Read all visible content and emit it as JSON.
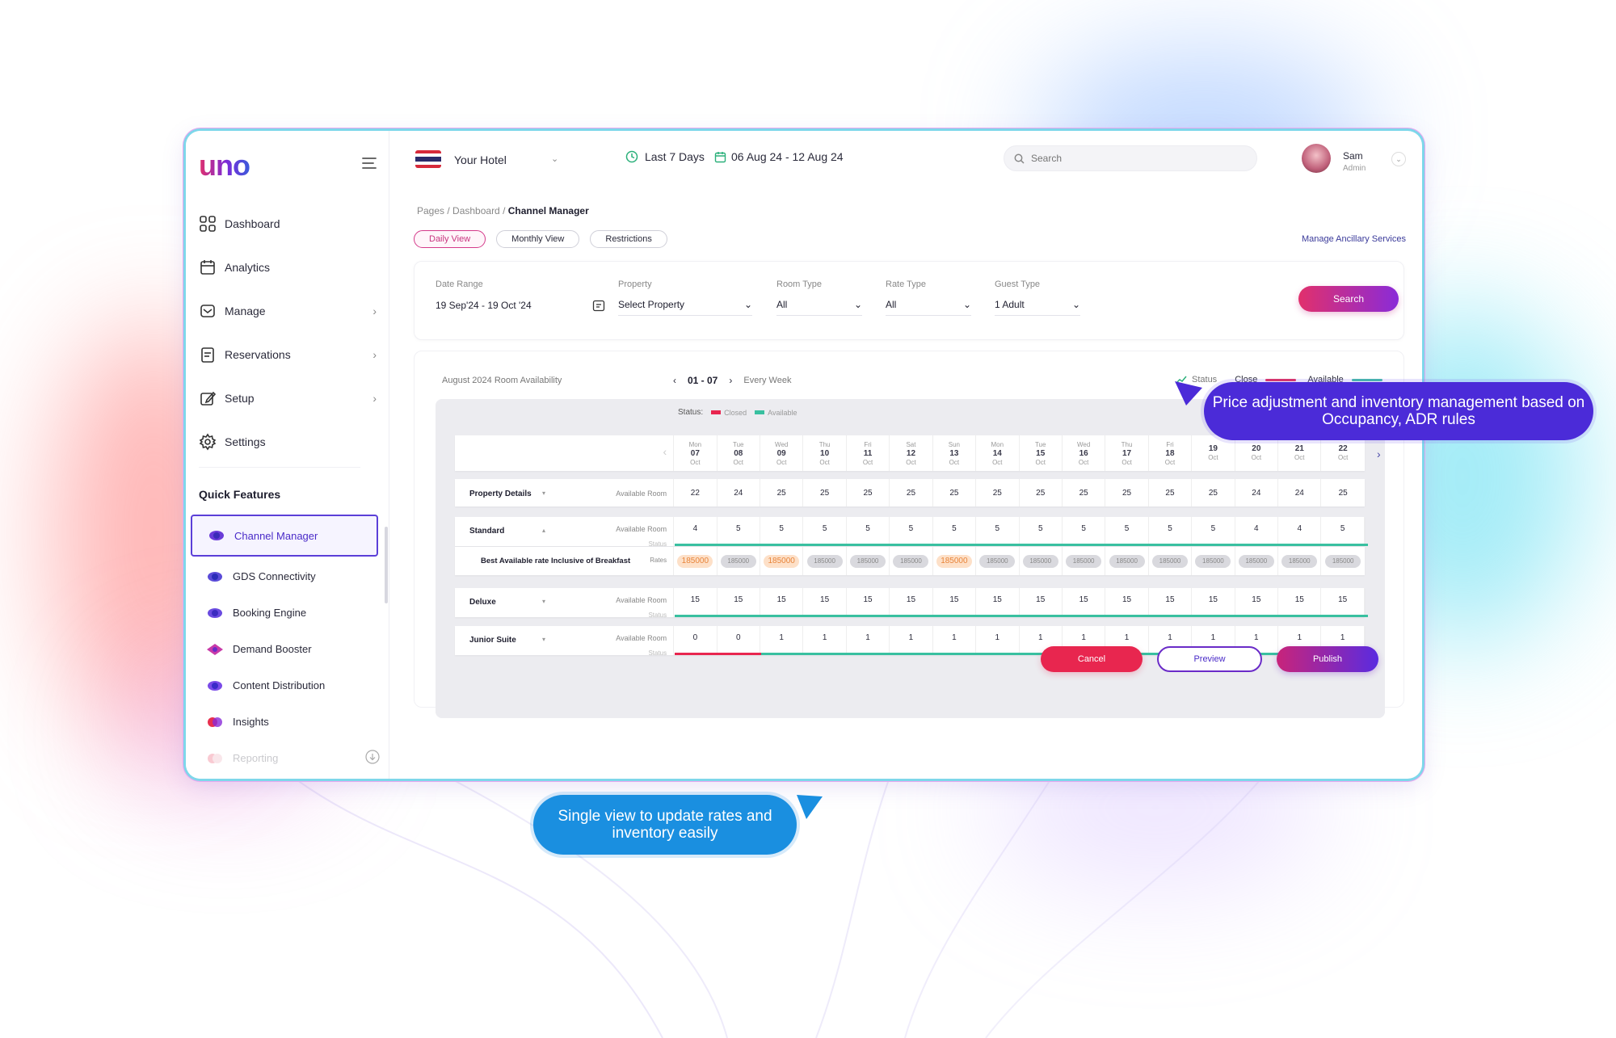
{
  "colors": {
    "brand_gradient_start": "#e1306c",
    "brand_gradient_end": "#5a2be0",
    "accent_violet": "#4b2bd8",
    "accent_blue": "#1a8fe0",
    "status_closed": "#e8264f",
    "status_available": "#39c0a0",
    "highlight_rate": "#e8843a"
  },
  "logo": "uno",
  "sidebar": {
    "menu_icon": "hamburger-icon",
    "nav": [
      {
        "label": "Dashboard",
        "icon": "grid-icon",
        "has_chevron": false
      },
      {
        "label": "Analytics",
        "icon": "calendar-icon",
        "has_chevron": false
      },
      {
        "label": "Manage",
        "icon": "mail-icon",
        "has_chevron": true
      },
      {
        "label": "Reservations",
        "icon": "clipboard-icon",
        "has_chevron": true
      },
      {
        "label": "Setup",
        "icon": "edit-icon",
        "has_chevron": true
      },
      {
        "label": "Settings",
        "icon": "gear-icon",
        "has_chevron": false
      }
    ],
    "quick_features_title": "Quick Features",
    "quick_features": [
      {
        "label": "Channel Manager",
        "active": true
      },
      {
        "label": "GDS Connectivity",
        "active": false
      },
      {
        "label": "Booking Engine",
        "active": false
      },
      {
        "label": "Demand Booster",
        "active": false
      },
      {
        "label": "Content Distribution",
        "active": false
      },
      {
        "label": "Insights",
        "active": false
      },
      {
        "label": "Reporting",
        "active": false
      }
    ]
  },
  "topbar": {
    "hotel": "Your Hotel",
    "period": "Last 7 Days",
    "date_range": "06 Aug 24 - 12 Aug 24",
    "search_placeholder": "Search",
    "user_name": "Sam",
    "user_role": "Admin"
  },
  "breadcrumb": {
    "trail": "Pages / Dashboard / ",
    "current": "Channel Manager"
  },
  "views": [
    "Daily View",
    "Monthly View",
    "Restrictions"
  ],
  "active_view": "Daily View",
  "ancillary_link": "Manage Ancillary Services",
  "filters": {
    "date_range_label": "Date Range",
    "date_range_value": "19 Sep'24 - 19 Oct '24",
    "property_label": "Property",
    "property_value": "Select Property",
    "room_type_label": "Room Type",
    "room_type_value": "All",
    "rate_type_label": "Rate Type",
    "rate_type_value": "All",
    "guest_type_label": "Guest Type",
    "guest_type_value": "1 Adult",
    "search_button": "Search"
  },
  "availability": {
    "title": "August 2024 Room Availability",
    "week_range": "01 - 07",
    "repeat": "Every Week",
    "legend_status": "Status",
    "legend_close": "Close",
    "legend_available": "Available",
    "grid_status_label": "Status:",
    "grid_closed": "Closed",
    "grid_available": "Available",
    "days": [
      {
        "dow": "Mon",
        "day": "07",
        "mon": "Oct"
      },
      {
        "dow": "Tue",
        "day": "08",
        "mon": "Oct"
      },
      {
        "dow": "Wed",
        "day": "09",
        "mon": "Oct"
      },
      {
        "dow": "Thu",
        "day": "10",
        "mon": "Oct"
      },
      {
        "dow": "Fri",
        "day": "11",
        "mon": "Oct"
      },
      {
        "dow": "Sat",
        "day": "12",
        "mon": "Oct"
      },
      {
        "dow": "Sun",
        "day": "13",
        "mon": "Oct"
      },
      {
        "dow": "Mon",
        "day": "14",
        "mon": "Oct"
      },
      {
        "dow": "Tue",
        "day": "15",
        "mon": "Oct"
      },
      {
        "dow": "Wed",
        "day": "16",
        "mon": "Oct"
      },
      {
        "dow": "Thu",
        "day": "17",
        "mon": "Oct"
      },
      {
        "dow": "Fri",
        "day": "18",
        "mon": "Oct"
      },
      {
        "dow": "",
        "day": "19",
        "mon": "Oct"
      },
      {
        "dow": "",
        "day": "20",
        "mon": "Oct"
      },
      {
        "dow": "",
        "day": "21",
        "mon": "Oct"
      },
      {
        "dow": "",
        "day": "22",
        "mon": "Oct"
      }
    ],
    "available_room_label": "Available Room",
    "status_label": "Status",
    "rates_label": "Rates",
    "property_details": {
      "name": "Property Details",
      "values": [
        22,
        24,
        25,
        25,
        25,
        25,
        25,
        25,
        25,
        25,
        25,
        25,
        25,
        24,
        24,
        25
      ]
    },
    "rooms": [
      {
        "name": "Standard",
        "caret": "up",
        "values": [
          4,
          5,
          5,
          5,
          5,
          5,
          5,
          5,
          5,
          5,
          5,
          5,
          5,
          4,
          4,
          5
        ],
        "closed_days": 0
      },
      {
        "name": "Deluxe",
        "caret": "down",
        "values": [
          15,
          15,
          15,
          15,
          15,
          15,
          15,
          15,
          15,
          15,
          15,
          15,
          15,
          15,
          15,
          15
        ],
        "closed_days": 0
      },
      {
        "name": "Junior Suite",
        "caret": "down",
        "values": [
          0,
          0,
          1,
          1,
          1,
          1,
          1,
          1,
          1,
          1,
          1,
          1,
          1,
          1,
          1,
          1
        ],
        "closed_days": 2
      }
    ],
    "rate_plan": {
      "name": "Best Available rate Inclusive of Breakfast",
      "values": [
        "185000",
        "185000",
        "185000",
        "185000",
        "185000",
        "185000",
        "185000",
        "185000",
        "185000",
        "185000",
        "185000",
        "185000",
        "185000",
        "185000",
        "185000",
        "185000"
      ],
      "highlighted": [
        0,
        2,
        6
      ]
    }
  },
  "actions": {
    "cancel": "Cancel",
    "preview": "Preview",
    "publish": "Publish"
  },
  "callouts": {
    "pricing": "Price adjustment and inventory management based on Occupancy, ADR rules",
    "single_view": "Single view to update rates and inventory easily"
  }
}
